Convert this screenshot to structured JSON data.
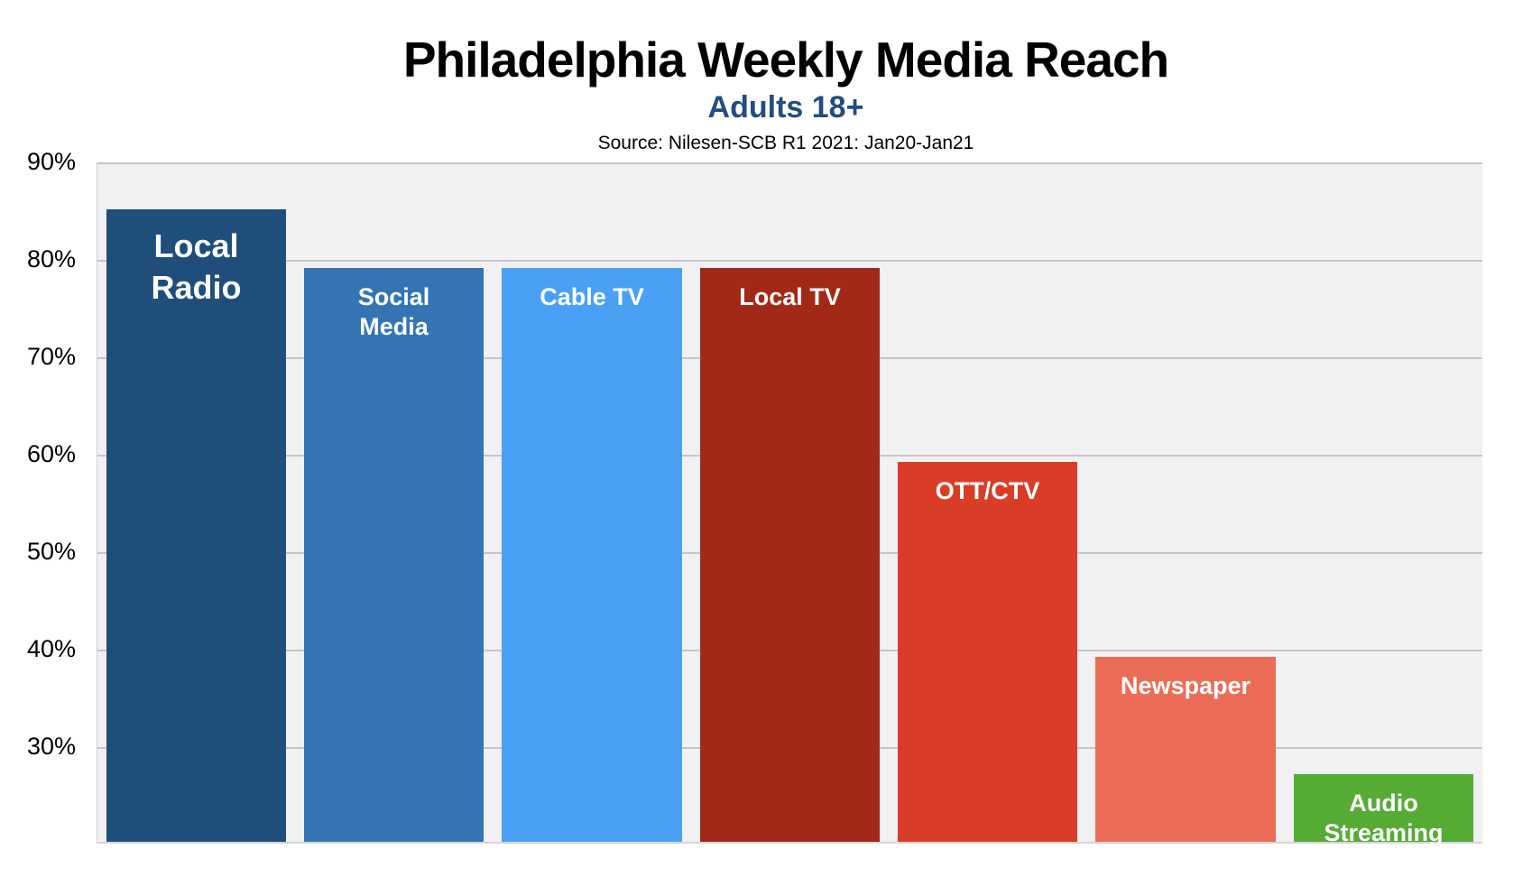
{
  "header": {
    "title": "Philadelphia Weekly Media Reach",
    "subtitle": "Adults 18+",
    "source": "Source: Nilesen-SCB R1 2021: Jan20-Jan21"
  },
  "y_axis": {
    "ticks": [
      "90%",
      "80%",
      "70%",
      "60%",
      "50%",
      "40%",
      "30%"
    ]
  },
  "bars": [
    {
      "label": "Local\nRadio",
      "value": 85,
      "color": "#1f4e7b"
    },
    {
      "label": "Social\nMedia",
      "value": 79,
      "color": "#3474b3"
    },
    {
      "label": "Cable TV",
      "value": 79,
      "color": "#4aa0f5"
    },
    {
      "label": "Local TV",
      "value": 79,
      "color": "#a22918"
    },
    {
      "label": "OTT/CTV",
      "value": 59,
      "color": "#d93d27"
    },
    {
      "label": "Newspaper",
      "value": 39,
      "color": "#eb6d57"
    },
    {
      "label": "Audio\nStreaming",
      "value": 27,
      "color": "#55ab34"
    }
  ],
  "chart_data": {
    "type": "bar",
    "title": "Philadelphia Weekly Media Reach",
    "subtitle": "Adults 18+",
    "source": "Source: Nilesen-SCB R1 2021: Jan20-Jan21",
    "categories": [
      "Local Radio",
      "Social Media",
      "Cable TV",
      "Local TV",
      "OTT/CTV",
      "Newspaper",
      "Audio Streaming"
    ],
    "values": [
      85,
      79,
      79,
      79,
      59,
      39,
      27
    ],
    "colors": [
      "#1f4e7b",
      "#3474b3",
      "#4aa0f5",
      "#a22918",
      "#d93d27",
      "#eb6d57",
      "#55ab34"
    ],
    "xlabel": "",
    "ylabel": "",
    "ylim": [
      20,
      90
    ],
    "yticks": [
      "30%",
      "40%",
      "50%",
      "60%",
      "70%",
      "80%",
      "90%"
    ],
    "grid": true,
    "legend": "none (labels inside bars)"
  }
}
